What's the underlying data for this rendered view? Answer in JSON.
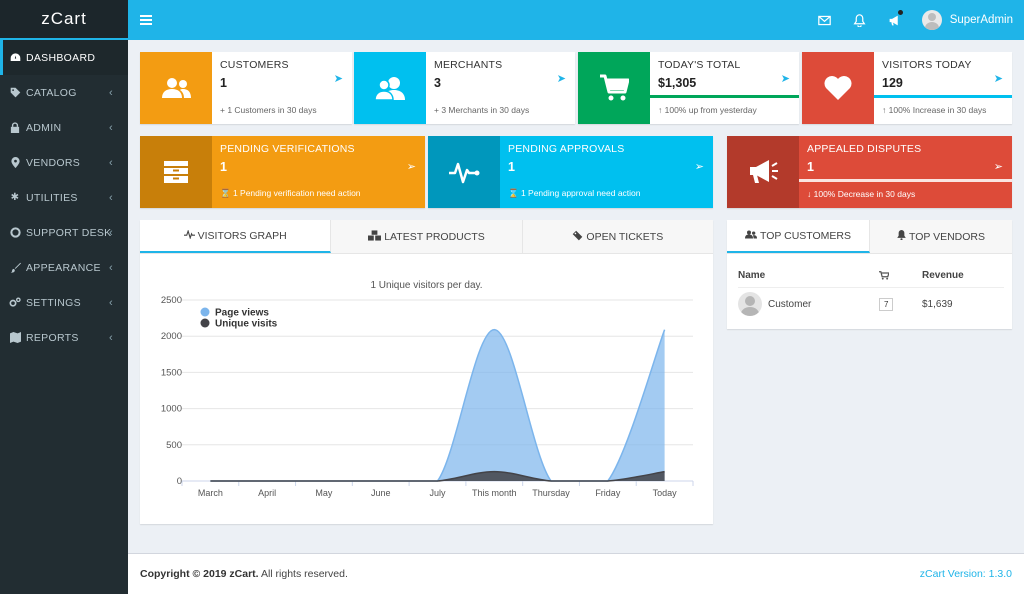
{
  "app": {
    "brand": "zCart"
  },
  "sidebar": {
    "items": [
      {
        "label": "DASHBOARD",
        "icon": "dashboard-icon",
        "active": true
      },
      {
        "label": "CATALOG",
        "icon": "tag-icon"
      },
      {
        "label": "ADMIN",
        "icon": "lock-icon"
      },
      {
        "label": "VENDORS",
        "icon": "map-marker-icon"
      },
      {
        "label": "UTILITIES",
        "icon": "asterisk-icon"
      },
      {
        "label": "SUPPORT DESK",
        "icon": "life-ring-icon"
      },
      {
        "label": "APPEARANCE",
        "icon": "paint-brush-icon"
      },
      {
        "label": "SETTINGS",
        "icon": "cogs-icon"
      },
      {
        "label": "REPORTS",
        "icon": "map-icon"
      }
    ]
  },
  "header": {
    "user_name": "SuperAdmin"
  },
  "stats": {
    "customers": {
      "title": "CUSTOMERS",
      "value": "1",
      "sub": "+ 1 Customers in 30 days",
      "color": "#f39c12"
    },
    "merchants": {
      "title": "MERCHANTS",
      "value": "3",
      "sub": "+ 3 Merchants in 30 days",
      "color": "#00c0ef"
    },
    "todays_total": {
      "title": "TODAY'S TOTAL",
      "value": "$1,305",
      "sub": "↑ 100% up from yesterday",
      "color": "#00a65a",
      "progress": 100
    },
    "visitors_today": {
      "title": "VISITORS TODAY",
      "value": "129",
      "sub": "↑ 100% Increase in 30 days",
      "color": "#dd4b39",
      "progress": 100
    },
    "pending_verifications": {
      "title": "PENDING VERIFICATIONS",
      "value": "1",
      "sub": "⌛ 1 Pending verification need action",
      "color": "#f39c12"
    },
    "pending_approvals": {
      "title": "PENDING APPROVALS",
      "value": "1",
      "sub": "⌛ 1 Pending approval need action",
      "color": "#00c0ef"
    },
    "appealed_disputes": {
      "title": "APPEALED DISPUTES",
      "value": "1",
      "sub": "↓ 100% Decrease in 30 days",
      "color": "#dd4b39",
      "progress": 100
    }
  },
  "main_tabs": [
    {
      "label": "VISITORS GRAPH",
      "icon": "heartbeat-icon",
      "active": true
    },
    {
      "label": "LATEST PRODUCTS",
      "icon": "cubes-icon"
    },
    {
      "label": "OPEN TICKETS",
      "icon": "ticket-icon"
    }
  ],
  "chart_data": {
    "type": "area",
    "title": "1 Unique visitors per day.",
    "categories": [
      "March",
      "April",
      "May",
      "June",
      "July",
      "This month",
      "Thursday",
      "Friday",
      "Today"
    ],
    "series": [
      {
        "name": "Page views",
        "color": "#7cb5ec",
        "values": [
          0,
          0,
          0,
          0,
          0,
          2090,
          0,
          0,
          2090
        ]
      },
      {
        "name": "Unique visits",
        "color": "#434348",
        "values": [
          0,
          0,
          0,
          0,
          0,
          129,
          0,
          0,
          129
        ]
      }
    ],
    "yticks": [
      0,
      500,
      1000,
      1500,
      2000,
      2500
    ],
    "ylim": [
      0,
      2500
    ],
    "legend": "top-left",
    "grid": true
  },
  "side_tabs": [
    {
      "label": "TOP CUSTOMERS",
      "icon": "users-icon",
      "active": true
    },
    {
      "label": "TOP VENDORS",
      "icon": "bell-icon"
    }
  ],
  "top_customers": {
    "headers": {
      "name": "Name",
      "orders_icon": "cart-icon",
      "revenue": "Revenue"
    },
    "rows": [
      {
        "name": "Customer",
        "orders": "7",
        "revenue": "$1,639"
      }
    ]
  },
  "footer": {
    "copyright_bold": "Copyright © 2019 zCart.",
    "copyright_rest": " All rights reserved.",
    "version": "zCart Version: 1.3.0"
  }
}
